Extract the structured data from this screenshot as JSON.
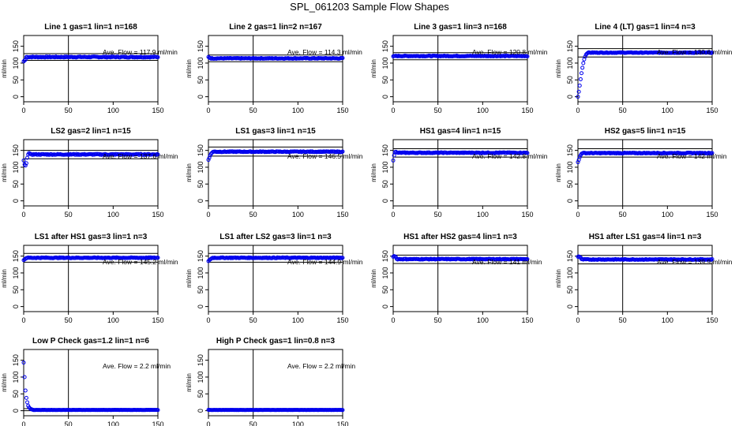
{
  "title": "SPL_061203  Sample Flow Shapes",
  "chart_data": [
    {
      "type": "scatter",
      "title": "Line 1 gas=1 lin=1 n=168",
      "ylabel": "ml/min",
      "annotation": "Ave. Flow =  117.9  ml/min",
      "xlim": [
        0,
        150
      ],
      "ylim": [
        -15,
        182
      ],
      "xticks": [
        0,
        50,
        100,
        150
      ],
      "yticks": [
        0,
        50,
        100,
        150
      ],
      "vline": 50,
      "hlines": [
        108,
        128
      ],
      "start": [
        [
          0,
          105
        ],
        [
          1,
          108
        ],
        [
          2,
          110
        ]
      ],
      "plateau": 118,
      "noise": 1.5
    },
    {
      "type": "scatter",
      "title": "Line 2 gas=1 lin=2 n=167",
      "ylabel": "ml/min",
      "annotation": "Ave. Flow =  114.3  ml/min",
      "xlim": [
        0,
        150
      ],
      "ylim": [
        -15,
        182
      ],
      "xticks": [
        0,
        50,
        100,
        150
      ],
      "yticks": [
        0,
        50,
        100,
        150
      ],
      "vline": 50,
      "hlines": [
        104,
        124
      ],
      "start": [
        [
          0,
          118
        ],
        [
          1,
          116
        ],
        [
          2,
          115
        ]
      ],
      "plateau": 114,
      "noise": 1.2
    },
    {
      "type": "scatter",
      "title": "Line 3 gas=1 lin=3 n=168",
      "ylabel": "ml/min",
      "annotation": "Ave. Flow =  120.8  ml/min",
      "xlim": [
        0,
        150
      ],
      "ylim": [
        -15,
        182
      ],
      "xticks": [
        0,
        50,
        100,
        150
      ],
      "yticks": [
        0,
        50,
        100,
        150
      ],
      "vline": 50,
      "hlines": [
        110,
        131
      ],
      "start": [
        [
          0,
          120
        ],
        [
          1,
          121
        ]
      ],
      "plateau": 121,
      "noise": 1.2
    },
    {
      "type": "scatter",
      "title": "Line 4 (LT) gas=1 lin=4 n=3",
      "ylabel": "ml/min",
      "annotation": "Ave. Flow =  130.6  ml/min",
      "xlim": [
        0,
        150
      ],
      "ylim": [
        -15,
        182
      ],
      "xticks": [
        0,
        50,
        100,
        150
      ],
      "yticks": [
        0,
        50,
        100,
        150
      ],
      "vline": 50,
      "hlines": [
        118,
        143
      ],
      "start": [
        [
          0,
          0
        ],
        [
          1,
          15
        ],
        [
          2,
          33
        ],
        [
          3,
          52
        ],
        [
          4,
          70
        ],
        [
          5,
          86
        ],
        [
          6,
          100
        ],
        [
          7,
          111
        ],
        [
          8,
          119
        ],
        [
          9,
          125
        ],
        [
          10,
          128
        ],
        [
          11,
          130
        ]
      ],
      "plateau": 131,
      "noise": 1.0
    },
    {
      "type": "scatter",
      "title": "LS2 gas=2 lin=1 n=15",
      "ylabel": "ml/min",
      "annotation": "Ave. Flow =  137.6  ml/min",
      "xlim": [
        0,
        150
      ],
      "ylim": [
        -15,
        182
      ],
      "xticks": [
        0,
        50,
        100,
        150
      ],
      "yticks": [
        0,
        50,
        100,
        150
      ],
      "vline": 50,
      "hlines": [
        125,
        150
      ],
      "start": [
        [
          0,
          120
        ],
        [
          1,
          108
        ],
        [
          2,
          105
        ],
        [
          3,
          112
        ],
        [
          4,
          128
        ],
        [
          5,
          138
        ],
        [
          6,
          142
        ]
      ],
      "plateau": 138,
      "noise": 1.5
    },
    {
      "type": "scatter",
      "title": "LS1 gas=3 lin=1 n=15",
      "ylabel": "ml/min",
      "annotation": "Ave. Flow =  146.5  ml/min",
      "xlim": [
        0,
        150
      ],
      "ylim": [
        -15,
        182
      ],
      "xticks": [
        0,
        50,
        100,
        150
      ],
      "yticks": [
        0,
        50,
        100,
        150
      ],
      "vline": 50,
      "hlines": [
        133,
        160
      ],
      "start": [
        [
          0,
          122
        ],
        [
          1,
          128
        ],
        [
          2,
          135
        ],
        [
          3,
          140
        ],
        [
          4,
          143
        ]
      ],
      "plateau": 146,
      "noise": 1.2
    },
    {
      "type": "scatter",
      "title": "HS1 gas=4 lin=1 n=15",
      "ylabel": "ml/min",
      "annotation": "Ave. Flow =  142.8  ml/min",
      "xlim": [
        0,
        150
      ],
      "ylim": [
        -15,
        182
      ],
      "xticks": [
        0,
        50,
        100,
        150
      ],
      "yticks": [
        0,
        50,
        100,
        150
      ],
      "vline": 50,
      "hlines": [
        130,
        155
      ],
      "start": [
        [
          0,
          120
        ],
        [
          1,
          135
        ],
        [
          2,
          145
        ],
        [
          3,
          146
        ]
      ],
      "plateau": 143,
      "noise": 1.2
    },
    {
      "type": "scatter",
      "title": "HS2 gas=5 lin=1 n=15",
      "ylabel": "ml/min",
      "annotation": "Ave. Flow =  142  ml/min",
      "xlim": [
        0,
        150
      ],
      "ylim": [
        -15,
        182
      ],
      "xticks": [
        0,
        50,
        100,
        150
      ],
      "yticks": [
        0,
        50,
        100,
        150
      ],
      "vline": 50,
      "hlines": [
        130,
        155
      ],
      "start": [
        [
          0,
          115
        ],
        [
          1,
          122
        ],
        [
          2,
          130
        ],
        [
          3,
          136
        ],
        [
          4,
          140
        ]
      ],
      "plateau": 142,
      "noise": 1.2
    },
    {
      "type": "scatter",
      "title": "LS1 after HS1 gas=3 lin=1 n=3",
      "ylabel": "ml/min",
      "annotation": "Ave. Flow =  145.2  ml/min",
      "xlim": [
        0,
        150
      ],
      "ylim": [
        -15,
        182
      ],
      "xticks": [
        0,
        50,
        100,
        150
      ],
      "yticks": [
        0,
        50,
        100,
        150
      ],
      "vline": 50,
      "hlines": [
        132,
        158
      ],
      "start": [
        [
          0,
          138
        ],
        [
          1,
          140
        ],
        [
          2,
          142
        ]
      ],
      "plateau": 145,
      "noise": 1.2
    },
    {
      "type": "scatter",
      "title": "LS1 after LS2 gas=3 lin=1 n=3",
      "ylabel": "ml/min",
      "annotation": "Ave. Flow =  144.9  ml/min",
      "xlim": [
        0,
        150
      ],
      "ylim": [
        -15,
        182
      ],
      "xticks": [
        0,
        50,
        100,
        150
      ],
      "yticks": [
        0,
        50,
        100,
        150
      ],
      "vline": 50,
      "hlines": [
        132,
        158
      ],
      "start": [
        [
          0,
          135
        ],
        [
          1,
          138
        ],
        [
          2,
          140
        ],
        [
          3,
          142
        ]
      ],
      "plateau": 145,
      "noise": 1.2
    },
    {
      "type": "scatter",
      "title": "HS1 after HS2 gas=4 lin=1 n=3",
      "ylabel": "ml/min",
      "annotation": "Ave. Flow =  141  ml/min",
      "xlim": [
        0,
        150
      ],
      "ylim": [
        -15,
        182
      ],
      "xticks": [
        0,
        50,
        100,
        150
      ],
      "yticks": [
        0,
        50,
        100,
        150
      ],
      "vline": 50,
      "hlines": [
        128,
        153
      ],
      "start": [
        [
          0,
          148
        ],
        [
          1,
          150
        ],
        [
          2,
          149
        ],
        [
          3,
          147
        ]
      ],
      "plateau": 141,
      "noise": 1.2
    },
    {
      "type": "scatter",
      "title": "HS1 after LS1 gas=4 lin=1 n=3",
      "ylabel": "ml/min",
      "annotation": "Ave. Flow =  139.9  ml/min",
      "xlim": [
        0,
        150
      ],
      "ylim": [
        -15,
        182
      ],
      "xticks": [
        0,
        50,
        100,
        150
      ],
      "yticks": [
        0,
        50,
        100,
        150
      ],
      "vline": 50,
      "hlines": [
        127,
        152
      ],
      "start": [
        [
          0,
          148
        ],
        [
          1,
          149
        ],
        [
          2,
          147
        ],
        [
          3,
          146
        ]
      ],
      "plateau": 140,
      "noise": 1.2
    },
    {
      "type": "scatter",
      "title": "Low P Check gas=1.2 lin=1 n=6",
      "ylabel": "ml/min",
      "annotation": "Ave. Flow =  2.2  ml/min",
      "xlim": [
        0,
        150
      ],
      "ylim": [
        -15,
        182
      ],
      "xticks": [
        0,
        50,
        100,
        150
      ],
      "yticks": [
        0,
        50,
        100,
        150
      ],
      "vline": 50,
      "hlines": [
        0,
        6
      ],
      "start": [
        [
          0,
          143
        ],
        [
          1,
          100
        ],
        [
          2,
          60
        ],
        [
          3,
          38
        ],
        [
          4,
          25
        ],
        [
          5,
          15
        ],
        [
          6,
          10
        ],
        [
          7,
          7
        ],
        [
          8,
          5
        ],
        [
          9,
          4
        ],
        [
          10,
          3
        ]
      ],
      "plateau": 2.2,
      "noise": 0.3
    },
    {
      "type": "scatter",
      "title": "High P Check gas=1 lin=0.8 n=3",
      "ylabel": "ml/min",
      "annotation": "Ave. Flow =  2.2  ml/min",
      "xlim": [
        0,
        150
      ],
      "ylim": [
        -15,
        182
      ],
      "xticks": [
        0,
        50,
        100,
        150
      ],
      "yticks": [
        0,
        50,
        100,
        150
      ],
      "vline": 50,
      "hlines": [
        0,
        5
      ],
      "start": [
        [
          0,
          2.5
        ],
        [
          1,
          2.2
        ]
      ],
      "plateau": 2.2,
      "noise": 0.2
    }
  ]
}
